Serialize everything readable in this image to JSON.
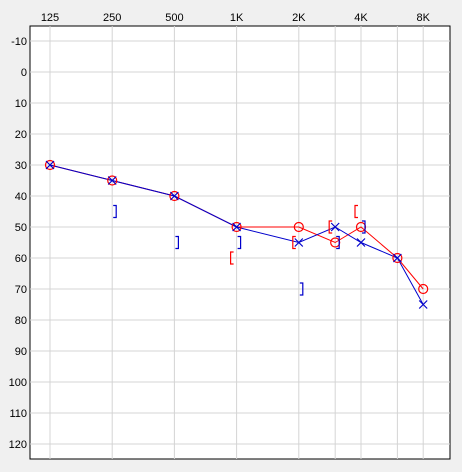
{
  "chart_data": {
    "type": "scatter",
    "x_axis": {
      "position": "top",
      "scale": "log",
      "ticks": [
        {
          "value": 125,
          "label": "125"
        },
        {
          "value": 250,
          "label": "250"
        },
        {
          "value": 500,
          "label": "500"
        },
        {
          "value": 1000,
          "label": "1K"
        },
        {
          "value": 2000,
          "label": "2K"
        },
        {
          "value": 4000,
          "label": "4K"
        },
        {
          "value": 8000,
          "label": "8K"
        }
      ],
      "intermediate_gridlines": [
        3000,
        6000
      ],
      "range": [
        125,
        8000
      ]
    },
    "y_axis": {
      "ticks": [
        "-10",
        "0",
        "10",
        "20",
        "30",
        "40",
        "50",
        "60",
        "70",
        "80",
        "90",
        "100",
        "110",
        "120"
      ],
      "range": [
        -10,
        120
      ],
      "inverted": true
    },
    "grid": true,
    "colors": {
      "right": "#ff0000",
      "left": "#0000cc",
      "background": "#ffffff",
      "frame": "#f0f0f0"
    },
    "series": [
      {
        "ear": "right",
        "symbol": "circle",
        "connected": true,
        "points": [
          [
            125,
            30
          ],
          [
            250,
            35
          ],
          [
            500,
            40
          ],
          [
            1000,
            50
          ],
          [
            2000,
            50
          ],
          [
            3000,
            55
          ],
          [
            4000,
            50
          ],
          [
            6000,
            60
          ],
          [
            8000,
            70
          ]
        ]
      },
      {
        "ear": "left",
        "symbol": "cross",
        "connected": true,
        "points": [
          [
            125,
            30
          ],
          [
            250,
            35
          ],
          [
            500,
            40
          ],
          [
            1000,
            50
          ],
          [
            2000,
            55
          ],
          [
            3000,
            50
          ],
          [
            4000,
            55
          ],
          [
            6000,
            60
          ],
          [
            8000,
            75
          ]
        ]
      },
      {
        "ear": "right",
        "symbol": "bone-bracket-open",
        "connected": false,
        "points": [
          [
            1000,
            60
          ],
          [
            2000,
            55
          ],
          [
            3000,
            50
          ],
          [
            4000,
            45
          ]
        ]
      },
      {
        "ear": "left",
        "symbol": "bone-bracket-close",
        "connected": false,
        "points": [
          [
            250,
            45
          ],
          [
            500,
            55
          ],
          [
            1000,
            55
          ],
          [
            2000,
            70
          ],
          [
            3000,
            55
          ],
          [
            4000,
            50
          ]
        ]
      }
    ]
  }
}
